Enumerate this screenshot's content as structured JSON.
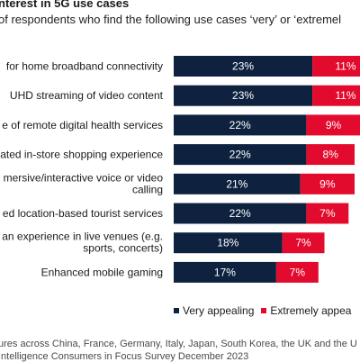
{
  "header": {
    "title": "nterest in 5G use cases",
    "subtitle": "of respondents who find the following use cases ‘very’ or ‘extremel"
  },
  "chart_data": {
    "type": "bar",
    "orientation": "horizontal",
    "stacked": true,
    "categories": [
      [
        "for home broadband connectivity"
      ],
      [
        "UHD streaming of video content"
      ],
      [
        "e of remote digital health services"
      ],
      [
        "ated in-store shopping experience"
      ],
      [
        "mersive/interactive voice or video",
        "calling"
      ],
      [
        "ed location-based tourist services"
      ],
      [
        "an experience in live venues (e.g.",
        "sports, concerts)"
      ],
      [
        "Enhanced mobile gaming"
      ]
    ],
    "series": [
      {
        "name": "Very appealing",
        "color": "#0e2240",
        "values": [
          23,
          23,
          22,
          22,
          21,
          22,
          18,
          17
        ],
        "labels": [
          "23%",
          "23%",
          "22%",
          "22%",
          "21%",
          "22%",
          "18%",
          "17%"
        ]
      },
      {
        "name": "Extremely appea",
        "color": "#e30b2d",
        "values": [
          11,
          11,
          9,
          8,
          9,
          7,
          7,
          7
        ],
        "labels": [
          "11%",
          "11%",
          "9%",
          "8%",
          "9%",
          "7%",
          "7%",
          "7%"
        ]
      }
    ],
    "legend_position": "bottom"
  },
  "legend": {
    "very": "Very appealing",
    "extremely": "Extremely appea"
  },
  "footer": {
    "line1": "ures across China, France, Germany, Italy, Japan, South Korea, the UK and the U",
    "line2": "Intelligence Consumers in Focus Survey December 2023"
  }
}
